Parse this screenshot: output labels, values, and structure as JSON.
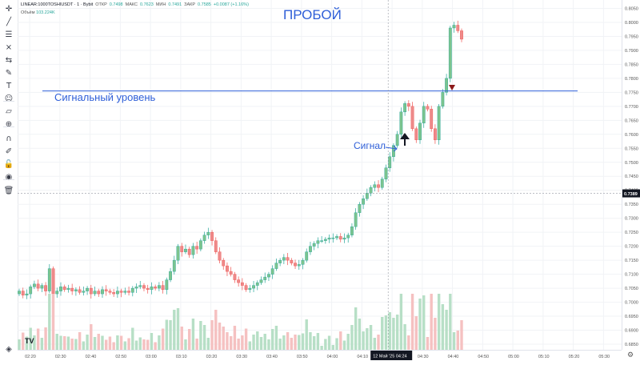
{
  "legend": {
    "symbol": "LINEAR:1000TOSHIUSDT · 1 · Bybit",
    "open_label": "ОТКР",
    "open": "0.7498",
    "high_label": "МАКС",
    "high": "0.7623",
    "low_label": "МИН",
    "low": "0.7491",
    "close_label": "ЗАКР",
    "close": "0.7585",
    "change": "+0.0087 (+1.16%)",
    "volume_label": "Объём",
    "volume": "103.224K"
  },
  "annotations": {
    "title": "ПРОБОЙ",
    "level_label": "Сигнальный уровень",
    "signal_label": "Сигнал",
    "level_price": 0.7755
  },
  "price_axis": {
    "ticks": [
      "0.8050",
      "0.8000",
      "0.7950",
      "0.7900",
      "0.7850",
      "0.7800",
      "0.7750",
      "0.7700",
      "0.7650",
      "0.7600",
      "0.7550",
      "0.7500",
      "0.7450",
      "0.7400",
      "0.7350",
      "0.7300",
      "0.7250",
      "0.7200",
      "0.7150",
      "0.7100",
      "0.7050",
      "0.7000",
      "0.6950",
      "0.6900",
      "0.6850"
    ],
    "current_price": "0.7389",
    "current_value": 0.7389
  },
  "time_axis": {
    "ticks": [
      "02:20",
      "02:30",
      "02:40",
      "02:50",
      "03:00",
      "03:10",
      "03:20",
      "03:30",
      "03:40",
      "03:50",
      "04:00",
      "04:10",
      "04:20",
      "04:30",
      "04:40",
      "04:50",
      "05:00",
      "05:10",
      "05:20",
      "05:30"
    ],
    "crosshair_label": "12 Май '25  04:24"
  },
  "colors": {
    "up": "#26a69a",
    "down": "#ef5350",
    "up_body": "#7cc48e",
    "down_body": "#ee8a8a",
    "level_line": "#2f5fd8",
    "text_blue": "#2f5fd8",
    "current_price_bg": "#131722"
  },
  "icons": {
    "settings": "⚙",
    "logo": "TV"
  },
  "toolbar": [
    "crosshair-icon",
    "trend-line-icon",
    "fib-icon",
    "pattern-icon",
    "prediction-icon",
    "brush-icon",
    "text-icon",
    "emoji-icon",
    "ruler-icon",
    "zoom-icon",
    "magnet-icon",
    "lock-drawing-icon",
    "lock-icon",
    "eye-icon",
    "trash-icon"
  ],
  "chart_data": {
    "type": "candlestick",
    "title": "ПРОБОЙ",
    "ylim": [
      0.683,
      0.808
    ],
    "xlim": [
      "02:16",
      "05:36"
    ],
    "candles_note": "approximate",
    "series": [
      {
        "name": "price",
        "values": [
          0.704,
          0.7025,
          0.703,
          0.7055,
          0.7065,
          0.705,
          0.706,
          0.704,
          0.712,
          0.703,
          0.704,
          0.7055,
          0.7045,
          0.705,
          0.704,
          0.7045,
          0.7035,
          0.704,
          0.705,
          0.703,
          0.704,
          0.703,
          0.7045,
          0.704,
          0.7035,
          0.703,
          0.704,
          0.7035,
          0.704,
          0.7035,
          0.705,
          0.7055,
          0.706,
          0.705,
          0.7045,
          0.7055,
          0.705,
          0.706,
          0.7045,
          0.708,
          0.711,
          0.715,
          0.72,
          0.718,
          0.719,
          0.717,
          0.72,
          0.719,
          0.722,
          0.724,
          0.725,
          0.722,
          0.718,
          0.715,
          0.713,
          0.711,
          0.71,
          0.708,
          0.707,
          0.706,
          0.7045,
          0.705,
          0.706,
          0.707,
          0.708,
          0.709,
          0.71,
          0.712,
          0.714,
          0.715,
          0.716,
          0.715,
          0.714,
          0.713,
          0.7135,
          0.715,
          0.718,
          0.72,
          0.721,
          0.722,
          0.722,
          0.7225,
          0.723,
          0.723,
          0.7235,
          0.7225,
          0.723,
          0.724,
          0.727,
          0.732,
          0.735,
          0.737,
          0.739,
          0.741,
          0.742,
          0.741,
          0.744,
          0.748,
          0.752,
          0.756,
          0.76,
          0.768,
          0.771,
          0.77,
          0.762,
          0.758,
          0.764,
          0.77,
          0.769,
          0.762,
          0.758,
          0.77,
          0.775,
          0.78,
          0.798,
          0.799,
          0.797,
          0.794
        ]
      }
    ]
  }
}
